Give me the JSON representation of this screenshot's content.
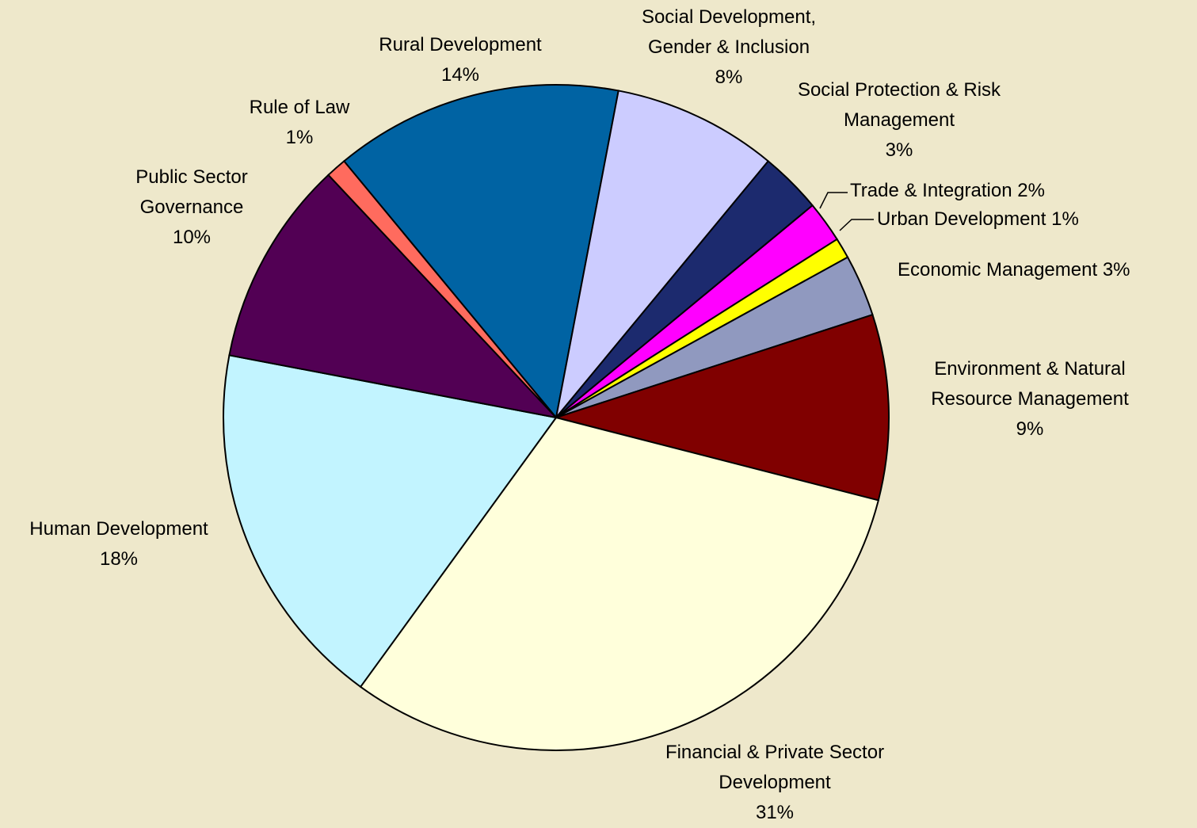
{
  "chart_data": {
    "type": "pie",
    "categories": [
      "Rural Development",
      "Social Development, Gender & Inclusion",
      "Social Protection & Risk Management",
      "Trade & Integration",
      "Urban Development",
      "Economic Management",
      "Environment & Natural Resource Management",
      "Financial & Private Sector Development",
      "Human Development",
      "Public Sector Governance",
      "Rule of Law"
    ],
    "values": [
      14,
      8,
      3,
      2,
      1,
      3,
      9,
      31,
      18,
      10,
      1
    ],
    "value_labels": [
      "14%",
      "8%",
      "3%",
      "2%",
      "1%",
      "3%",
      "9%",
      "31%",
      "18%",
      "10%",
      "1%"
    ],
    "colors": [
      "#0063a3",
      "#ccccff",
      "#1c2a6e",
      "#ff00ff",
      "#ffff00",
      "#9099bf",
      "#800000",
      "#ffffdb",
      "#c2f4ff",
      "#520054",
      "#ff6b5e"
    ]
  }
}
